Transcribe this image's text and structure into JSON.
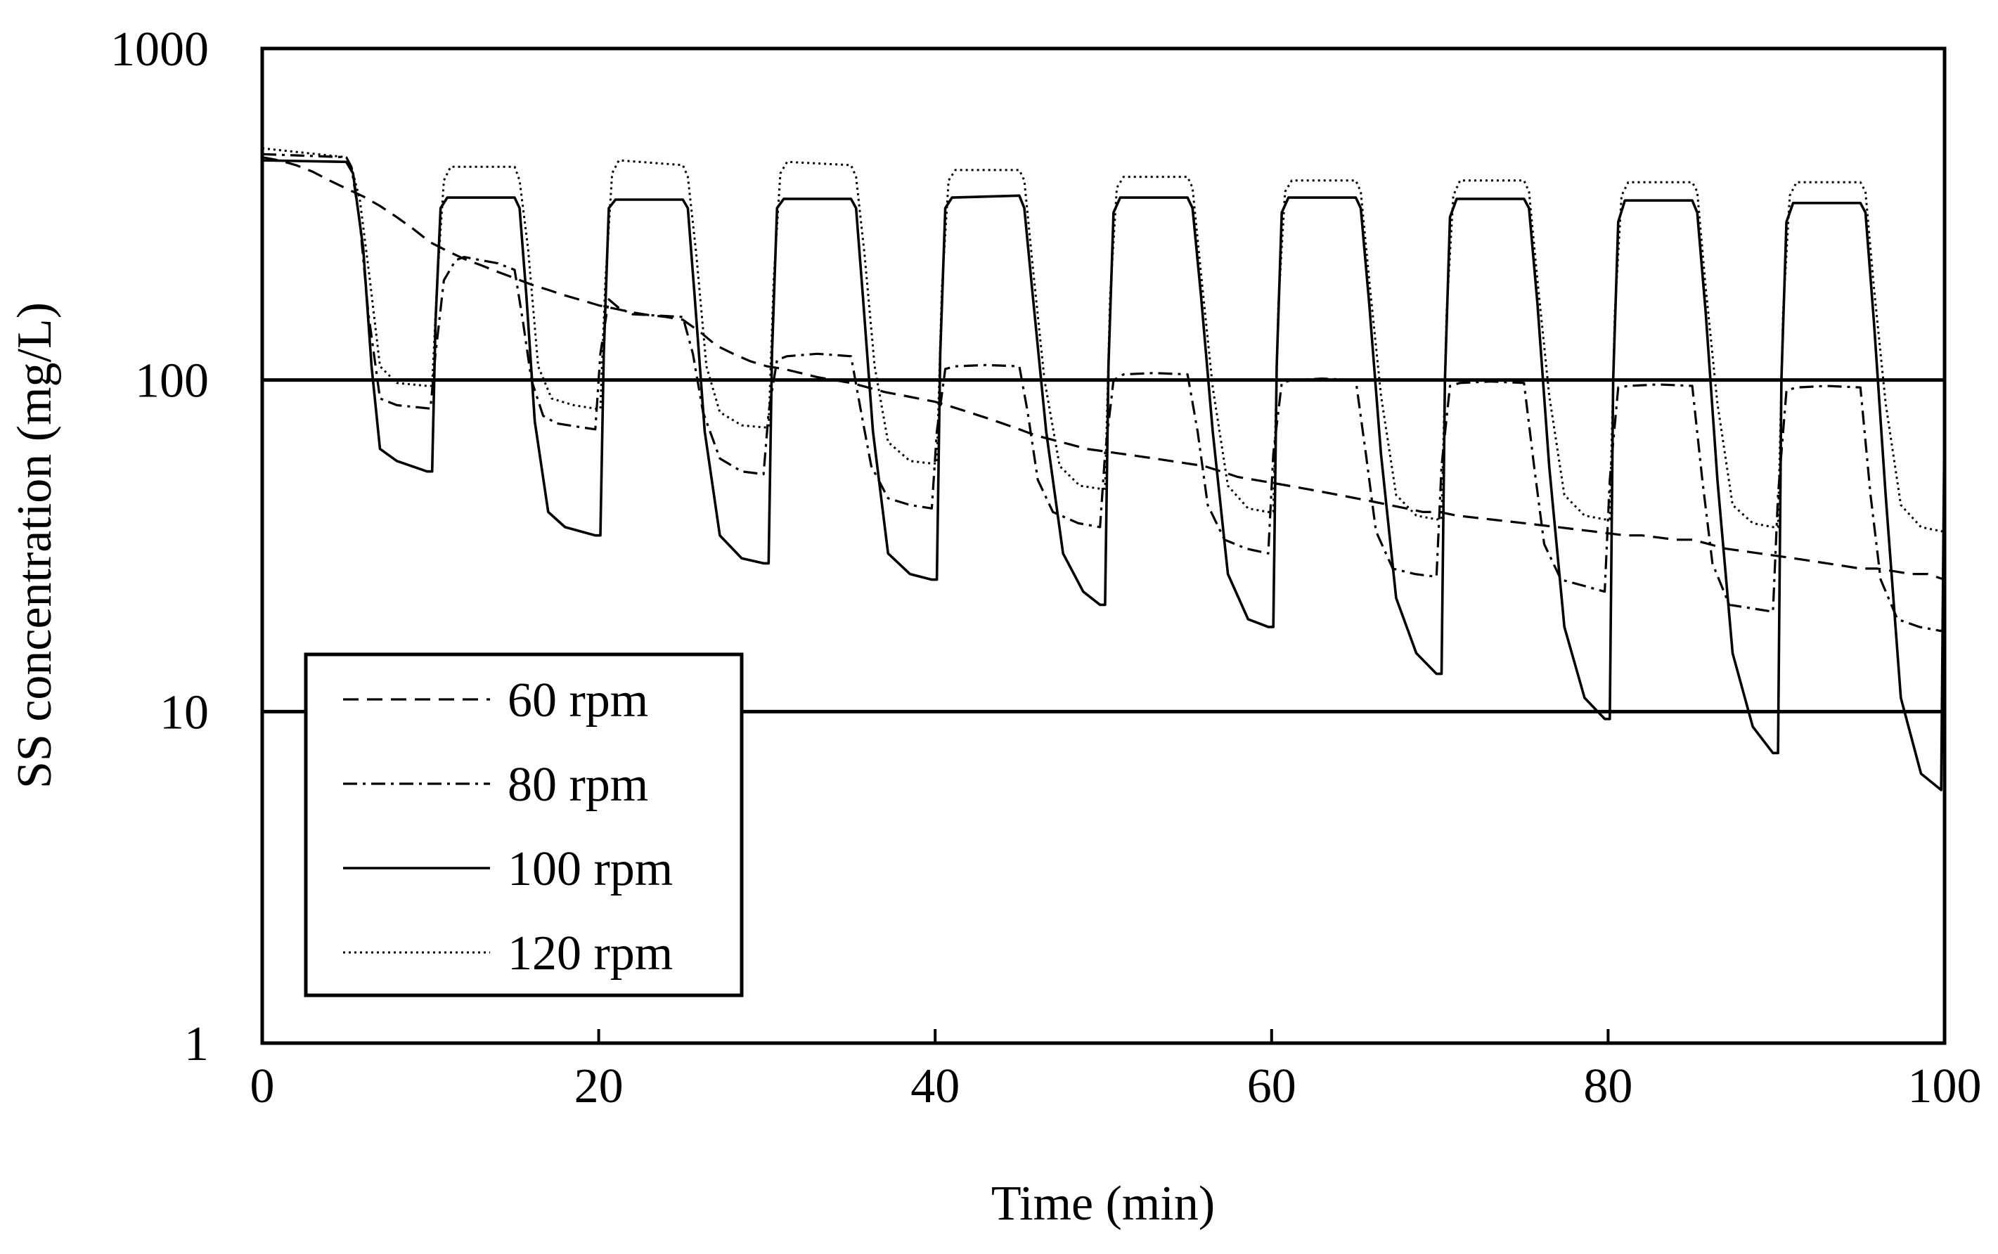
{
  "chart_data": {
    "type": "line",
    "title": "",
    "xlabel": "Time (min)",
    "ylabel": "SS concentration  (mg/L)",
    "xlim": [
      0,
      100
    ],
    "ylim": [
      1,
      1000
    ],
    "yscale": "log",
    "x_ticks": [
      0,
      20,
      40,
      60,
      80,
      100
    ],
    "x_tick_labels": [
      "0",
      "20",
      "40",
      "60",
      "80",
      "100"
    ],
    "y_ticks": [
      1,
      10,
      100,
      1000
    ],
    "y_tick_labels": [
      "1",
      "10",
      "100",
      "1000"
    ],
    "gridlines_y": [
      10,
      100
    ],
    "legend_position": "lower-left",
    "series": [
      {
        "name": "60 rpm",
        "style": "dashed",
        "x": [
          0,
          1,
          2,
          3,
          4,
          5,
          6,
          7,
          8,
          9,
          10,
          11,
          12,
          13,
          14,
          15,
          16,
          17,
          18,
          19,
          20,
          21,
          22,
          23,
          24,
          25,
          26,
          27,
          28,
          29,
          30,
          31,
          32,
          33,
          34,
          35,
          36,
          37,
          38,
          39,
          40,
          41,
          42,
          43,
          44,
          45,
          46,
          47,
          48,
          49,
          50,
          51,
          52,
          53,
          54,
          55,
          56,
          57,
          58,
          59,
          60,
          61,
          62,
          63,
          64,
          65,
          66,
          67,
          68,
          69,
          70,
          71,
          72,
          73,
          74,
          75,
          76,
          77,
          78,
          79,
          80,
          81,
          82,
          83,
          84,
          85,
          86,
          87,
          88,
          89,
          90,
          91,
          92,
          93,
          94,
          95,
          96,
          97,
          98,
          99,
          100
        ],
        "y": [
          470,
          460,
          445,
          425,
          400,
          378,
          358,
          335,
          310,
          285,
          260,
          245,
          232,
          222,
          212,
          203,
          194,
          187,
          180,
          174,
          168,
          164,
          160,
          157,
          155,
          152,
          140,
          127,
          120,
          114,
          110,
          108,
          105,
          102,
          100,
          98,
          95,
          92,
          90,
          88,
          86,
          83,
          80,
          77,
          74,
          71,
          68,
          66,
          64,
          62,
          61,
          60,
          59,
          58,
          57,
          56,
          55,
          53,
          51,
          50,
          49,
          48,
          47,
          46,
          45,
          44,
          43,
          42,
          41,
          40,
          40,
          39,
          38.5,
          38,
          37.5,
          37,
          36.5,
          36,
          35.5,
          35,
          34.5,
          34,
          34,
          33.5,
          33,
          33,
          32,
          31,
          30.5,
          30,
          29.5,
          29,
          28.5,
          28,
          27.5,
          27,
          27,
          26.5,
          26,
          26,
          25
        ]
      },
      {
        "name": "80 rpm",
        "style": "dashdot",
        "x": [
          0,
          5,
          5.3,
          5.8,
          6.3,
          7,
          8,
          10,
          10.3,
          10.8,
          11.5,
          12,
          14,
          15,
          15.5,
          16,
          16.7,
          17.5,
          19,
          19.8,
          20.1,
          20.6,
          21.2,
          22,
          25,
          25.6,
          26.2,
          27.2,
          28.5,
          29.8,
          30.1,
          30.6,
          31.2,
          33,
          35,
          35.6,
          36.2,
          37.2,
          38.5,
          39.8,
          40.1,
          40.6,
          41.2,
          43,
          45,
          45.5,
          46.1,
          47,
          48.5,
          49.8,
          50.1,
          50.6,
          51.2,
          53,
          55,
          55.6,
          56.2,
          57.2,
          58.5,
          59.8,
          60.1,
          60.6,
          61.2,
          63,
          65,
          65.6,
          66.2,
          67.2,
          68.5,
          69.8,
          70.1,
          70.6,
          71.2,
          73,
          75,
          75.6,
          76.2,
          77.2,
          78.5,
          79.8,
          80.1,
          80.6,
          81.2,
          83,
          85,
          85.6,
          86.2,
          87.2,
          88.5,
          89.8,
          90.1,
          90.6,
          91.2,
          93,
          95,
          95.6,
          96.2,
          97.2,
          98.5,
          99.8,
          100
        ],
        "y": [
          480,
          470,
          440,
          300,
          160,
          88,
          84,
          82,
          120,
          200,
          230,
          235,
          225,
          215,
          150,
          100,
          78,
          74,
          72,
          71,
          120,
          175,
          165,
          158,
          155,
          120,
          80,
          58,
          53,
          52,
          80,
          115,
          118,
          120,
          118,
          80,
          55,
          44,
          42,
          41,
          70,
          108,
          110,
          111,
          110,
          80,
          50,
          40,
          37,
          36,
          60,
          100,
          104,
          105,
          104,
          70,
          42,
          33,
          31,
          30,
          60,
          98,
          100,
          101,
          100,
          60,
          35,
          27,
          26,
          25.5,
          55,
          96,
          98,
          99,
          98,
          55,
          32,
          25,
          24,
          23,
          50,
          95,
          96,
          97,
          96,
          50,
          28,
          21,
          20.5,
          20,
          45,
          93,
          95,
          96,
          95,
          45,
          25,
          19,
          18,
          17.5,
          18
        ]
      },
      {
        "name": "100 rpm",
        "style": "solid",
        "x": [
          0,
          5,
          5.4,
          6,
          6.5,
          7,
          8,
          9.8,
          10.1,
          10.3,
          10.6,
          11,
          15,
          15.3,
          15.7,
          16.2,
          17,
          18,
          19.8,
          20.1,
          20.3,
          20.6,
          21,
          25,
          25.3,
          25.7,
          26.3,
          27.2,
          28.5,
          29.8,
          30.1,
          30.3,
          30.6,
          31,
          35,
          35.3,
          35.7,
          36.3,
          37.2,
          38.5,
          39.8,
          40.1,
          40.3,
          40.6,
          41,
          45,
          45.3,
          45.8,
          46.6,
          47.6,
          48.8,
          49.8,
          50.1,
          50.3,
          50.6,
          51,
          55,
          55.3,
          55.8,
          56.5,
          57.4,
          58.6,
          59.8,
          60.1,
          60.3,
          60.6,
          61,
          65,
          65.3,
          65.8,
          66.5,
          67.4,
          68.6,
          69.8,
          70.1,
          70.3,
          70.6,
          71,
          75,
          75.3,
          75.8,
          76.5,
          77.4,
          78.6,
          79.8,
          80.1,
          80.3,
          80.6,
          81,
          85,
          85.3,
          85.8,
          86.5,
          87.4,
          88.6,
          89.8,
          90.1,
          90.3,
          90.6,
          91,
          95,
          95.3,
          95.8,
          96.5,
          97.4,
          98.6,
          99.8,
          100
        ],
        "y": [
          460,
          455,
          420,
          250,
          110,
          62,
          57,
          53,
          53,
          150,
          330,
          355,
          355,
          330,
          180,
          75,
          40,
          36,
          34,
          34,
          120,
          330,
          350,
          350,
          330,
          180,
          70,
          34,
          29,
          28,
          28,
          120,
          330,
          352,
          352,
          330,
          180,
          70,
          30,
          26,
          25,
          25,
          120,
          330,
          355,
          360,
          330,
          180,
          70,
          30,
          23,
          21,
          21,
          110,
          320,
          355,
          355,
          330,
          180,
          70,
          26,
          19,
          18,
          18,
          110,
          320,
          355,
          355,
          330,
          170,
          60,
          22,
          15,
          13,
          13,
          100,
          310,
          352,
          352,
          330,
          170,
          55,
          18,
          11,
          9.5,
          9.5,
          100,
          300,
          348,
          348,
          320,
          160,
          50,
          15,
          9,
          7.5,
          7.5,
          100,
          300,
          342,
          342,
          320,
          150,
          45,
          11,
          6.5,
          5.8,
          85
        ]
      },
      {
        "name": "120 rpm",
        "style": "dotted",
        "x": [
          0,
          5,
          5.3,
          5.8,
          6.4,
          7,
          8,
          9.8,
          10.1,
          10.4,
          10.8,
          11.2,
          15,
          15.3,
          15.8,
          16.4,
          17.2,
          18.5,
          19.8,
          20.1,
          20.4,
          20.8,
          21.2,
          25,
          25.3,
          25.8,
          26.4,
          27.2,
          28.5,
          29.8,
          30.1,
          30.4,
          30.8,
          31.2,
          35,
          35.3,
          35.8,
          36.4,
          37.2,
          38.5,
          39.8,
          40.1,
          40.4,
          40.8,
          41.2,
          45,
          45.3,
          45.8,
          46.5,
          47.4,
          48.6,
          49.8,
          50.1,
          50.4,
          50.8,
          51.2,
          55,
          55.3,
          55.8,
          56.5,
          57.4,
          58.6,
          59.8,
          60.1,
          60.4,
          60.8,
          61.2,
          65,
          65.3,
          65.8,
          66.5,
          67.4,
          68.6,
          69.8,
          70.1,
          70.4,
          70.8,
          71.2,
          75,
          75.3,
          75.8,
          76.5,
          77.4,
          78.6,
          79.8,
          80.1,
          80.4,
          80.8,
          81.2,
          85,
          85.3,
          85.8,
          86.5,
          87.4,
          88.6,
          89.8,
          90.1,
          90.4,
          90.8,
          91.2,
          95,
          95.3,
          95.8,
          96.5,
          97.4,
          98.6,
          99.8,
          100
        ],
        "y": [
          500,
          470,
          440,
          350,
          200,
          110,
          98,
          96,
          96,
          200,
          400,
          440,
          440,
          400,
          250,
          110,
          88,
          84,
          82,
          82,
          200,
          420,
          460,
          445,
          410,
          240,
          110,
          80,
          73,
          72,
          72,
          200,
          420,
          455,
          445,
          410,
          240,
          110,
          65,
          57,
          56,
          56,
          190,
          400,
          430,
          430,
          400,
          220,
          100,
          55,
          48,
          47,
          47,
          180,
          380,
          410,
          410,
          380,
          210,
          95,
          48,
          41,
          40,
          40,
          170,
          370,
          400,
          400,
          370,
          200,
          90,
          45,
          39,
          38,
          38,
          160,
          360,
          400,
          400,
          370,
          200,
          90,
          45,
          39,
          38,
          38,
          160,
          360,
          395,
          395,
          370,
          190,
          85,
          42,
          37,
          36,
          36,
          160,
          360,
          395,
          395,
          370,
          190,
          85,
          42,
          36,
          35,
          35
        ]
      }
    ]
  }
}
